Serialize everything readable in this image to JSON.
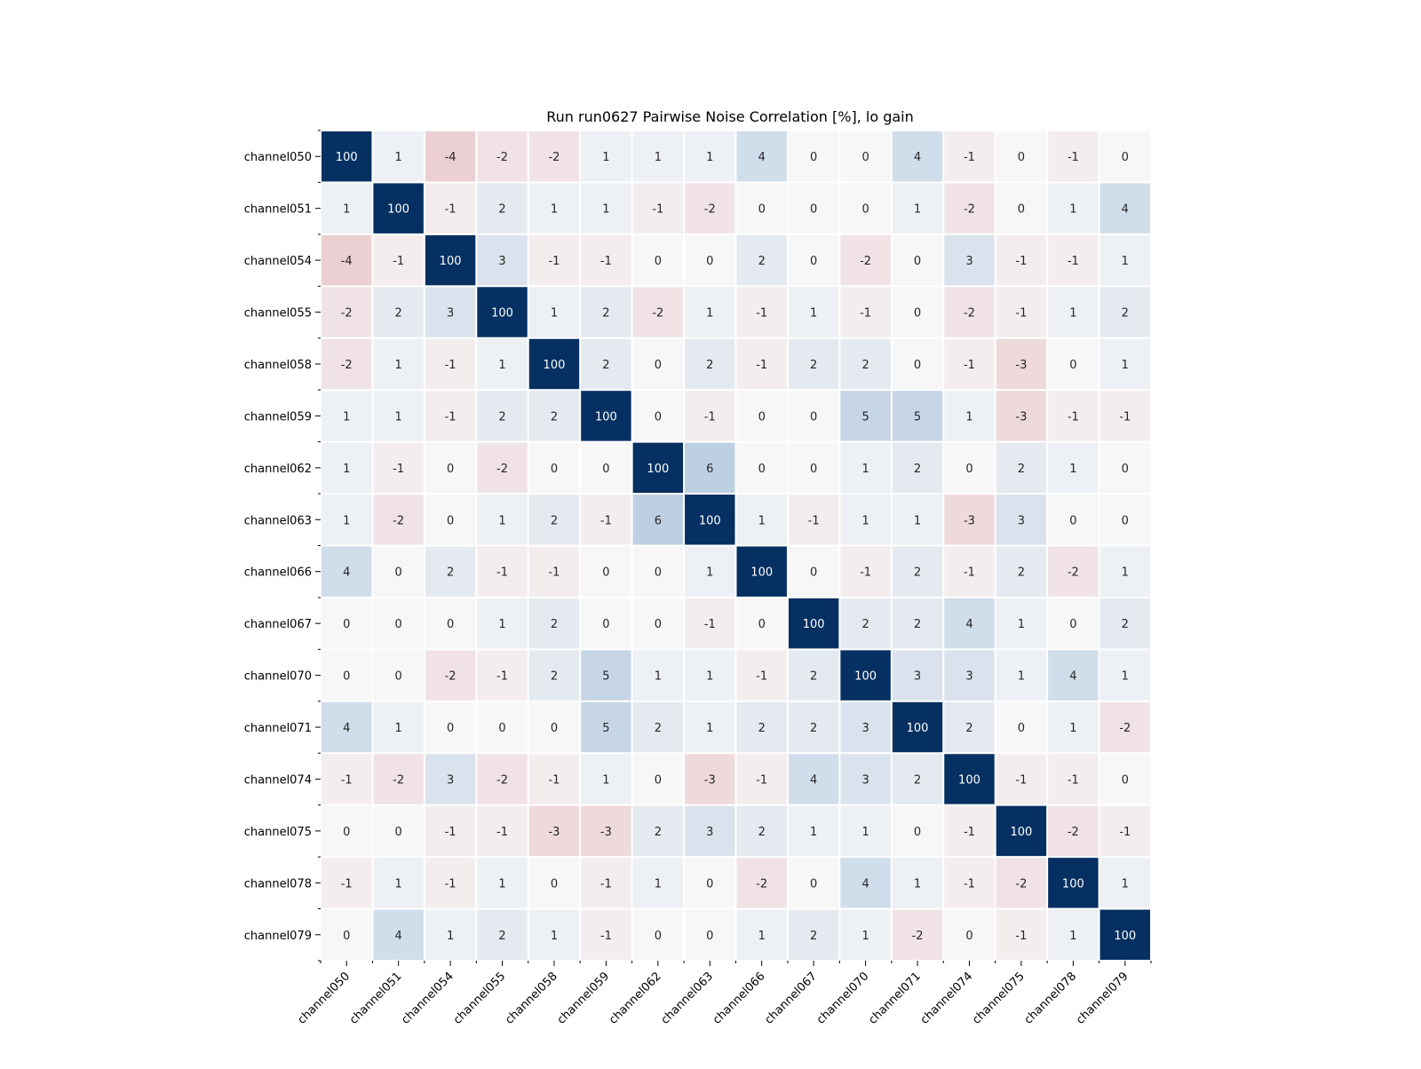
{
  "chart_data": {
    "type": "heatmap",
    "title": "Run run0627 Pairwise Noise Correlation [%], lo gain",
    "xlabel": "",
    "ylabel": "",
    "labels": [
      "channel050",
      "channel051",
      "channel054",
      "channel055",
      "channel058",
      "channel059",
      "channel062",
      "channel063",
      "channel066",
      "channel067",
      "channel070",
      "channel071",
      "channel074",
      "channel075",
      "channel078",
      "channel079"
    ],
    "values": [
      [
        100,
        1,
        -4,
        -2,
        -2,
        1,
        1,
        1,
        4,
        0,
        0,
        4,
        -1,
        0,
        -1,
        0
      ],
      [
        1,
        100,
        -1,
        2,
        1,
        1,
        -1,
        -2,
        0,
        0,
        0,
        1,
        -2,
        0,
        1,
        4
      ],
      [
        -4,
        -1,
        100,
        3,
        -1,
        -1,
        0,
        0,
        2,
        0,
        -2,
        0,
        3,
        -1,
        -1,
        1
      ],
      [
        -2,
        2,
        3,
        100,
        1,
        2,
        -2,
        1,
        -1,
        1,
        -1,
        0,
        -2,
        -1,
        1,
        2
      ],
      [
        -2,
        1,
        -1,
        1,
        100,
        2,
        0,
        2,
        -1,
        2,
        2,
        0,
        -1,
        -3,
        0,
        1
      ],
      [
        1,
        1,
        -1,
        2,
        2,
        100,
        0,
        -1,
        0,
        0,
        5,
        5,
        1,
        -3,
        -1,
        -1
      ],
      [
        1,
        -1,
        0,
        -2,
        0,
        0,
        100,
        6,
        0,
        0,
        1,
        2,
        0,
        2,
        1,
        0
      ],
      [
        1,
        -2,
        0,
        1,
        2,
        -1,
        6,
        100,
        1,
        -1,
        1,
        1,
        -3,
        3,
        0,
        0
      ],
      [
        4,
        0,
        2,
        -1,
        -1,
        0,
        0,
        1,
        100,
        0,
        -1,
        2,
        -1,
        2,
        -2,
        1
      ],
      [
        0,
        0,
        0,
        1,
        2,
        0,
        0,
        -1,
        0,
        100,
        2,
        2,
        4,
        1,
        0,
        2
      ],
      [
        0,
        0,
        -2,
        -1,
        2,
        5,
        1,
        1,
        -1,
        2,
        100,
        3,
        3,
        1,
        4,
        1
      ],
      [
        4,
        1,
        0,
        0,
        0,
        5,
        2,
        1,
        2,
        2,
        3,
        100,
        2,
        0,
        1,
        -2
      ],
      [
        -1,
        -2,
        3,
        -2,
        -1,
        1,
        0,
        -3,
        -1,
        4,
        3,
        2,
        100,
        -1,
        -1,
        0
      ],
      [
        0,
        0,
        -1,
        -1,
        -3,
        -3,
        2,
        3,
        2,
        1,
        1,
        0,
        -1,
        100,
        -2,
        -1
      ],
      [
        -1,
        1,
        -1,
        1,
        0,
        -1,
        1,
        0,
        -2,
        0,
        4,
        1,
        -1,
        -2,
        100,
        1
      ],
      [
        0,
        4,
        1,
        2,
        1,
        -1,
        0,
        0,
        1,
        2,
        1,
        -2,
        0,
        -1,
        1,
        100
      ]
    ],
    "colormap": "RdBu",
    "vmin": -10,
    "vmax": 10,
    "colorbar": false,
    "colors": {
      "diagonal": "#053061",
      "neutral": "#f7f7f7",
      "positive": "#2166ac",
      "negative": "#b2182b",
      "text_dark": "#262626",
      "text_light": "#ffffff"
    }
  }
}
